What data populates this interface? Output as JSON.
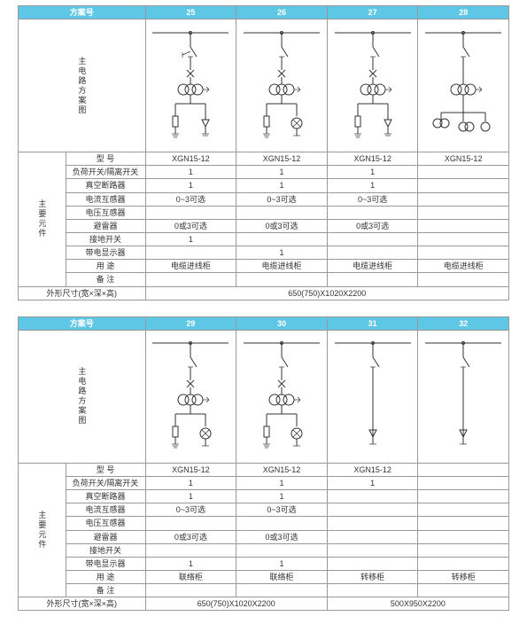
{
  "colors": {
    "header_bg": "#5fc7e6",
    "header_fg": "#ffffff",
    "border": "#999999",
    "text": "#333333"
  },
  "labels": {
    "scheme_no": "方案号",
    "main_diagram": "主电路方案图",
    "main_components": "主要元件",
    "model": "型 号",
    "load_switch": "负荷开关/隔离开关",
    "vcb": "真空断路器",
    "ct": "电流互感器",
    "pt": "电压互感器",
    "arrester": "避雷器",
    "earth_switch": "接地开关",
    "live_indicator": "带电显示器",
    "usage": "用 途",
    "notes": "备 注",
    "dimensions": "外形尺寸(宽×深×高)"
  },
  "top": {
    "cols": [
      "25",
      "26",
      "27",
      "28"
    ],
    "rows": {
      "model": [
        "XGN15-12",
        "XGN15-12",
        "XGN15-12",
        "XGN15-12"
      ],
      "load_switch": [
        "1",
        "1",
        "1",
        ""
      ],
      "vcb": [
        "1",
        "1",
        "1",
        ""
      ],
      "ct": [
        "0~3可选",
        "0~3可选",
        "0~3可选",
        ""
      ],
      "pt": [
        "",
        "",
        "",
        ""
      ],
      "arrester": [
        "0或3可选",
        "0或3可选",
        "0或3可选",
        ""
      ],
      "earth_switch": [
        "1",
        "",
        "",
        ""
      ],
      "live_indicator": [
        "",
        "1",
        "",
        ""
      ],
      "usage": [
        "电缆进线柜",
        "电缆进线柜",
        "电缆进线柜",
        "电缆进线柜"
      ],
      "notes": [
        "",
        "",
        "",
        ""
      ]
    },
    "dim": "650(750)X1020X2200"
  },
  "bottom": {
    "cols": [
      "29",
      "30",
      "31",
      "32"
    ],
    "rows": {
      "model": [
        "XGN15-12",
        "XGN15-12",
        "XGN15-12",
        ""
      ],
      "load_switch": [
        "1",
        "1",
        "1",
        ""
      ],
      "vcb": [
        "1",
        "1",
        "",
        ""
      ],
      "ct": [
        "0~3可选",
        "0~3可选",
        "",
        ""
      ],
      "pt": [
        "",
        "",
        "",
        ""
      ],
      "arrester": [
        "0或3可选",
        "0或3可选",
        "",
        ""
      ],
      "earth_switch": [
        "",
        "",
        "",
        ""
      ],
      "live_indicator": [
        "1",
        "1",
        "",
        ""
      ],
      "usage": [
        "联络柜",
        "联络柜",
        "转移柜",
        "转移柜"
      ],
      "notes": [
        "",
        "",
        "",
        ""
      ]
    },
    "dim1": "650(750)X1020X2200",
    "dim2": "500X950X2200"
  }
}
